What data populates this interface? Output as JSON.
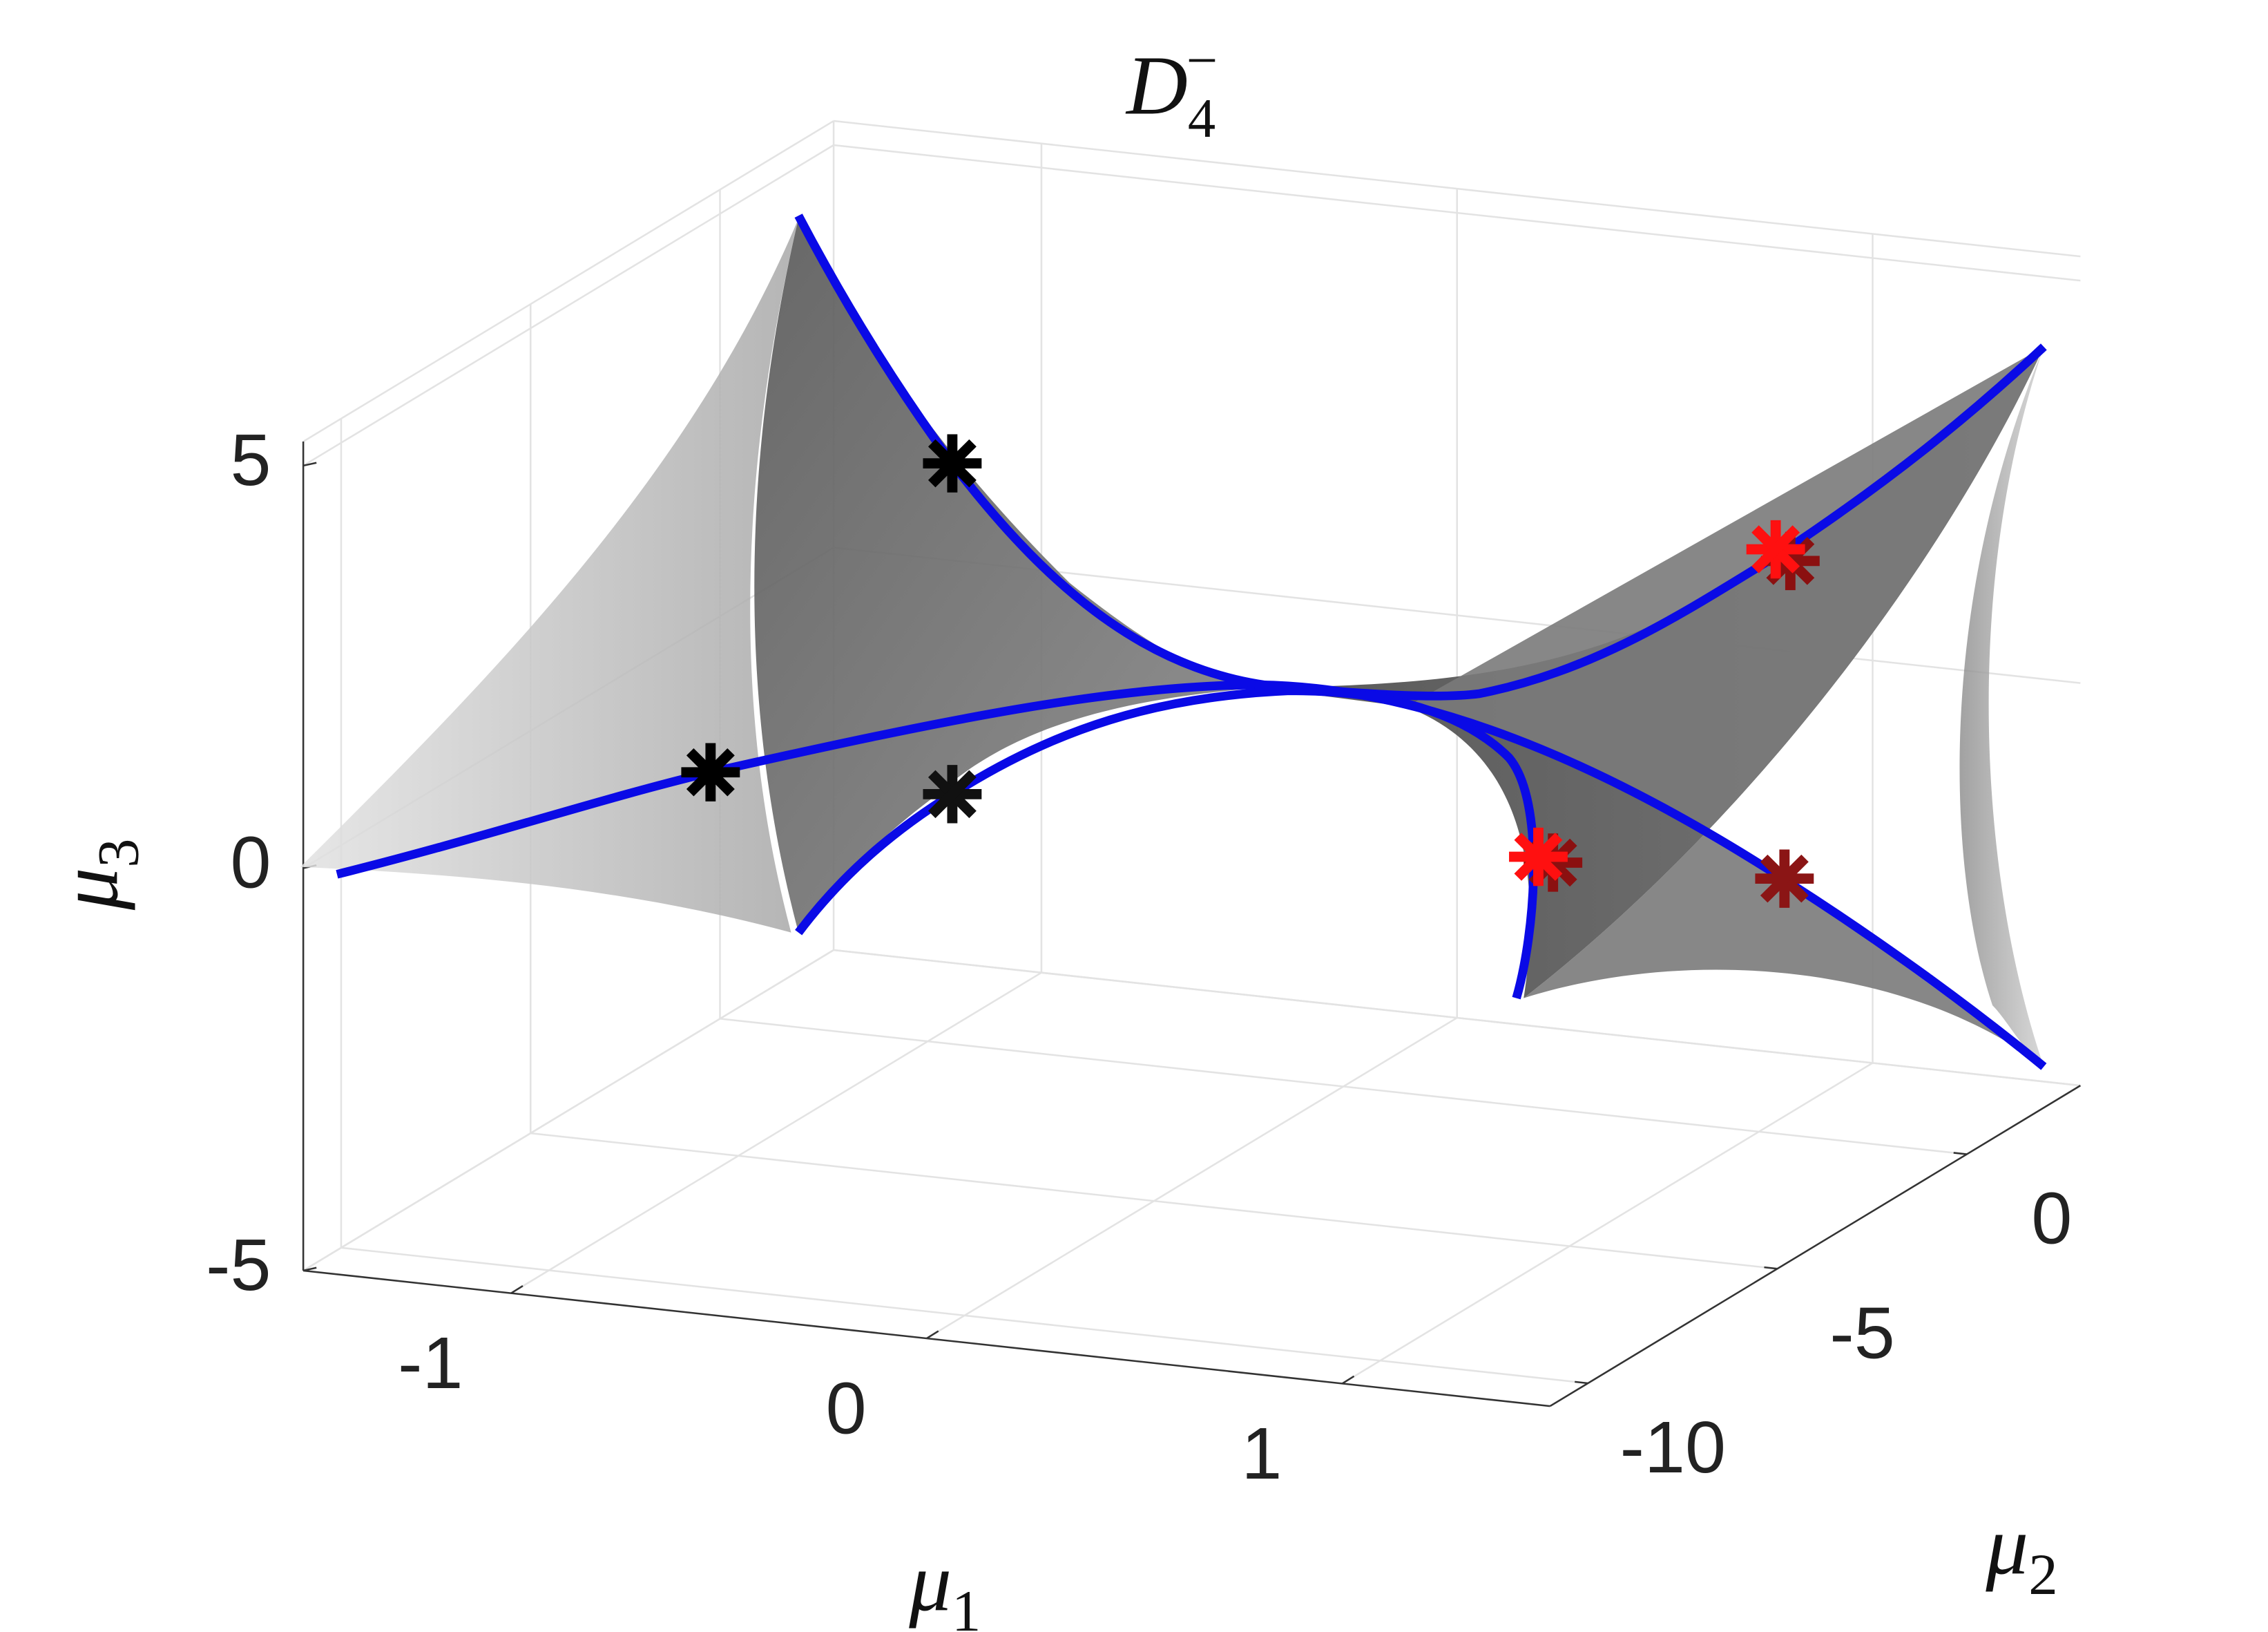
{
  "chart_data": {
    "type": "surface3d",
    "title": {
      "base": "D",
      "subscript": "4",
      "superscript": "−"
    },
    "x_label": {
      "base": "μ",
      "subscript": "1"
    },
    "y_label": {
      "base": "μ",
      "subscript": "2"
    },
    "z_label": {
      "base": "μ",
      "subscript": "3"
    },
    "xlim": [
      -1.5,
      1.5
    ],
    "ylim": [
      -11,
      3
    ],
    "zlim": [
      -5,
      5.3
    ],
    "xticks": [
      -1,
      0,
      1
    ],
    "yticks": [
      -10,
      -5,
      0
    ],
    "zticks": [
      -5,
      0,
      5
    ],
    "grid": true
  }
}
